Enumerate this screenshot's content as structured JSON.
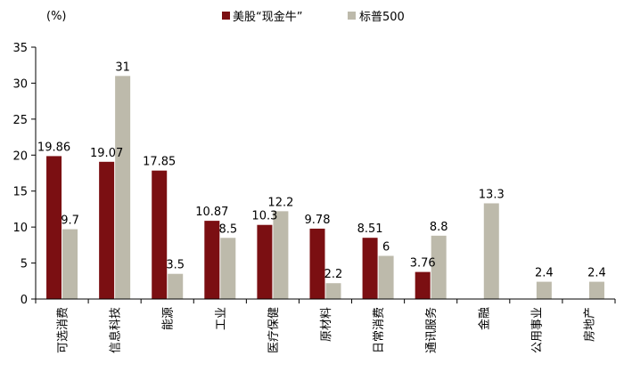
{
  "chart_data": {
    "type": "bar",
    "unit_label": "(%)",
    "categories": [
      "可选消费",
      "信息科技",
      "能源",
      "工业",
      "医疗保健",
      "原材料",
      "日常消费",
      "通讯服务",
      "金融",
      "公用事业",
      "房地产"
    ],
    "series": [
      {
        "name": "美股“现金牛”",
        "color": "#7b0f12",
        "values": [
          19.86,
          19.07,
          17.85,
          10.87,
          10.3,
          9.78,
          8.51,
          3.76,
          null,
          null,
          null
        ],
        "labels": [
          "19.86",
          "19.07",
          "17.85",
          "10.87",
          "10.3",
          "9.78",
          "8.51",
          "3.76",
          "",
          "",
          ""
        ]
      },
      {
        "name": "标普500",
        "color": "#bdbaab",
        "values": [
          9.7,
          31,
          3.5,
          8.5,
          12.2,
          2.2,
          6,
          8.8,
          13.3,
          2.4,
          2.4
        ],
        "labels": [
          "9.7",
          "31",
          "3.5",
          "8.5",
          "12.2",
          "2.2",
          "6",
          "8.8",
          "13.3",
          "2.4",
          "2.4"
        ]
      }
    ],
    "ylim": [
      0,
      35
    ],
    "yticks": [
      "0",
      "5",
      "10",
      "15",
      "20",
      "25",
      "30",
      "35"
    ],
    "grid": false,
    "legend_position": "top-center"
  }
}
